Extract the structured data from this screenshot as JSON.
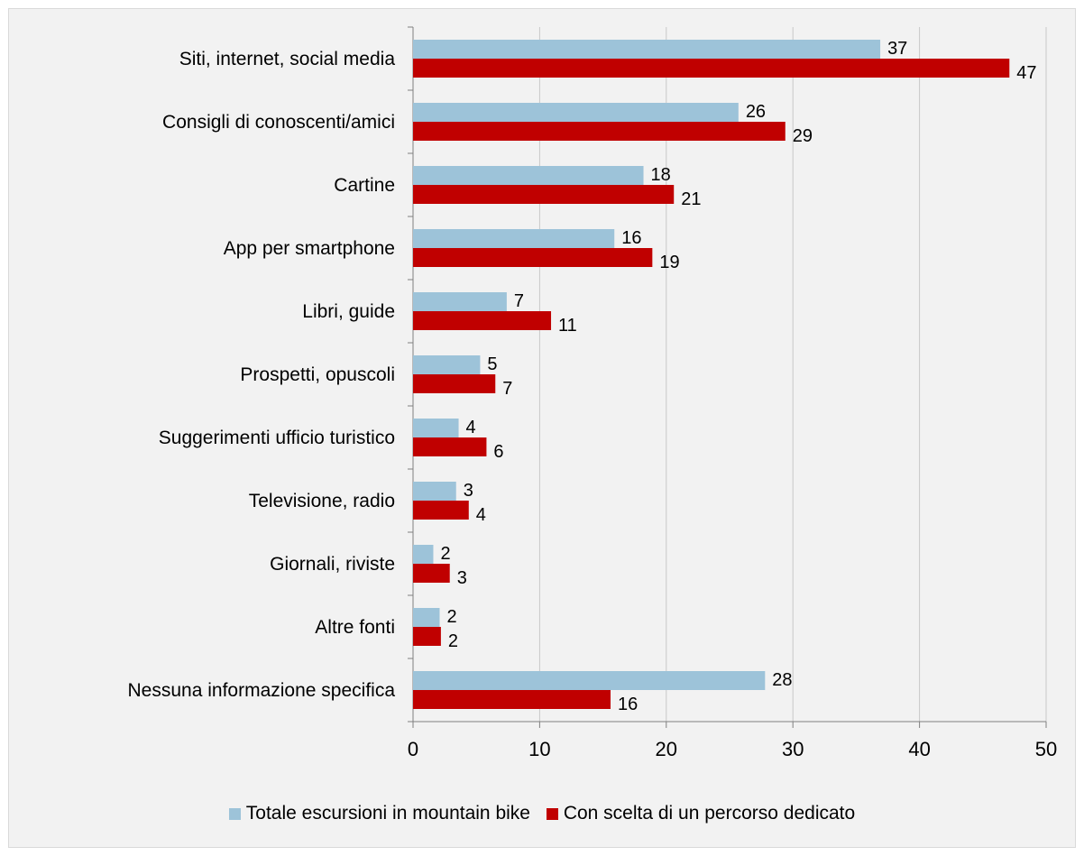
{
  "chart_data": {
    "type": "bar",
    "orientation": "horizontal",
    "categories": [
      "Siti, internet, social media",
      "Consigli di conoscenti/amici",
      "Cartine",
      "App per smartphone",
      "Libri, guide",
      "Prospetti, opuscoli",
      "Suggerimenti ufficio turistico",
      "Televisione, radio",
      "Giornali, riviste",
      "Altre fonti",
      "Nessuna informazione specifica"
    ],
    "series": [
      {
        "name": "Totale escursioni in mountain bike",
        "color": "#9dc3d9",
        "values": [
          36.9,
          25.7,
          18.2,
          15.9,
          7.4,
          5.3,
          3.6,
          3.4,
          1.6,
          2.1,
          27.8
        ],
        "labels": [
          "37",
          "26",
          "18",
          "16",
          "7",
          "5",
          "4",
          "3",
          "2",
          "2",
          "28"
        ]
      },
      {
        "name": "Con scelta di un percorso dedicato",
        "color": "#c00000",
        "values": [
          47.1,
          29.4,
          20.6,
          18.9,
          10.9,
          6.5,
          5.8,
          4.4,
          2.9,
          2.2,
          15.6
        ],
        "labels": [
          "47",
          "29",
          "21",
          "19",
          "11",
          "7",
          "6",
          "4",
          "3",
          "2",
          "16"
        ]
      }
    ],
    "xlim": [
      0,
      50
    ],
    "xticks": [
      "0",
      "10",
      "20",
      "30",
      "40",
      "50"
    ],
    "grid": "vertical",
    "legend": "bottom"
  }
}
